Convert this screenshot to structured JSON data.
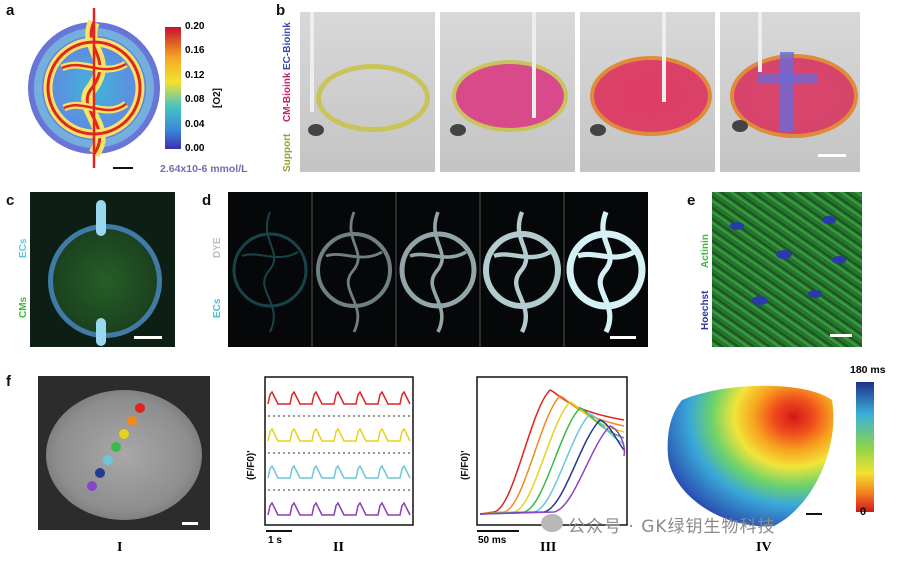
{
  "panels": {
    "a": {
      "label": "a",
      "colorbar_ticks": [
        "0.20",
        "0.16",
        "0.12",
        "0.08",
        "0.04",
        "0.00"
      ],
      "colorbar_title": "[O2]",
      "unit_text": "2.64x10-6 mmol/L"
    },
    "b": {
      "label": "b",
      "side_labels": [
        "Support",
        "CM-Bioink",
        "EC-Bioink"
      ]
    },
    "c": {
      "label": "c",
      "side_labels": [
        "ECs",
        "CMs"
      ]
    },
    "d": {
      "label": "d",
      "side_labels": [
        "DYE",
        "ECs"
      ]
    },
    "e": {
      "label": "e",
      "side_labels": [
        "Actinin",
        "Hoechst"
      ]
    },
    "f": {
      "label": "f",
      "roman": [
        "I",
        "II",
        "III",
        "IV"
      ],
      "ylabel": "(F/F0)'",
      "time_bar_II": "1 s",
      "time_bar_III": "50 ms",
      "colorbar_top": "180 ms",
      "colorbar_bottom": "0"
    }
  },
  "colors": {
    "red": "#e02424",
    "yellow": "#e6d21c",
    "cyan": "#6ec6d8",
    "purple": "#8b3db3",
    "orange": "#f08a1c",
    "green": "#3db84a",
    "navy": "#243a8c",
    "violet": "#8a44c8"
  },
  "watermark": "公众号 · GK绿钥生物科技"
}
